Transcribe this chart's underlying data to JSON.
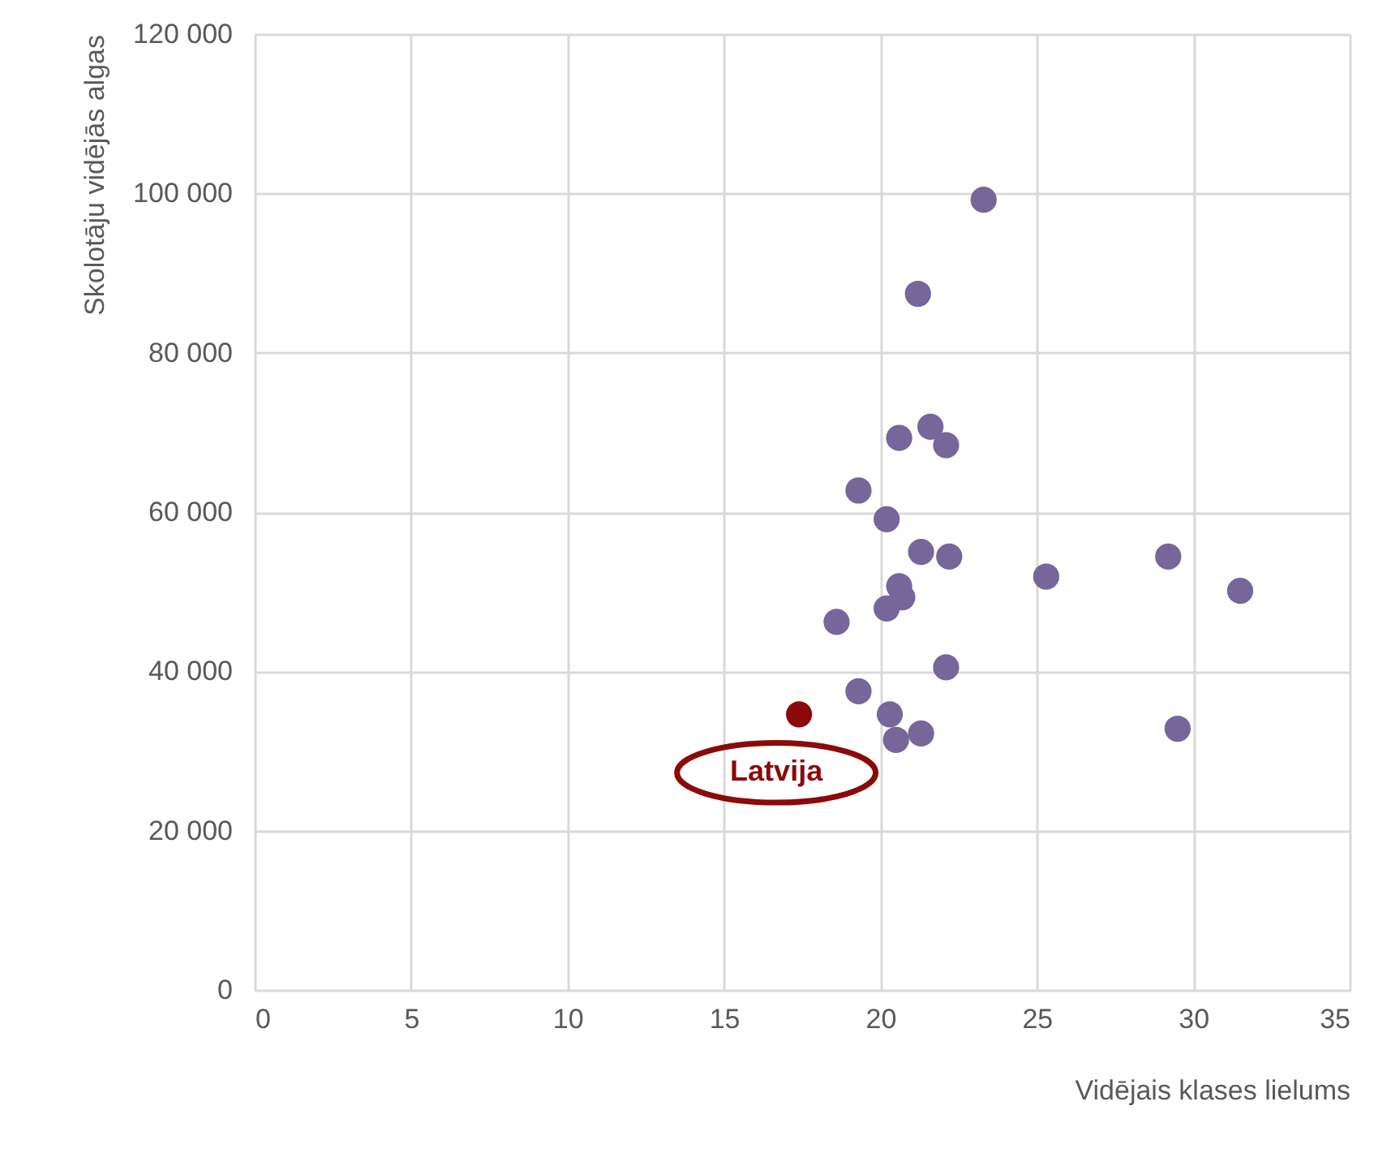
{
  "chart_data": {
    "type": "scatter",
    "xlabel": "Vidējais klases lielums",
    "ylabel": "Skolotāju vidējās algas",
    "xlim": [
      0,
      35
    ],
    "xticks": [
      0,
      5,
      10,
      15,
      20,
      25,
      30,
      35
    ],
    "ylim": [
      0,
      120000
    ],
    "yticks": [
      0,
      {
        "value": 20000,
        "label": "20 000"
      },
      {
        "value": 40000,
        "label": "40 000"
      },
      {
        "value": 60000,
        "label": "60 000"
      },
      {
        "value": 80000,
        "label": "80 000"
      },
      {
        "value": 100000,
        "label": "100 000"
      },
      {
        "value": 120000,
        "label": "120 000"
      }
    ],
    "grid": true,
    "marker": "circle",
    "series": [
      {
        "color": "#76669a",
        "x": [
          23.3,
          21.2,
          21.6,
          20.6,
          22.1,
          19.3,
          20.2,
          21.3,
          22.2,
          25.3,
          29.2,
          31.5,
          20.6,
          20.7,
          20.2,
          18.6,
          22.1,
          19.3,
          20.3,
          20.5,
          21.3,
          29.5
        ],
        "values": [
          99200,
          87400,
          70700,
          69300,
          68400,
          62700,
          59100,
          55000,
          54400,
          51900,
          54400,
          50100,
          50700,
          49300,
          47900,
          46200,
          40500,
          37500,
          34600,
          31400,
          32200,
          32800
        ]
      },
      {
        "color": "#8b0a0a",
        "x": [
          17.4
        ],
        "values": [
          34600
        ]
      }
    ],
    "annotations": [
      {
        "text": "Latvija",
        "x": 17.4,
        "y": 34600
      }
    ]
  }
}
